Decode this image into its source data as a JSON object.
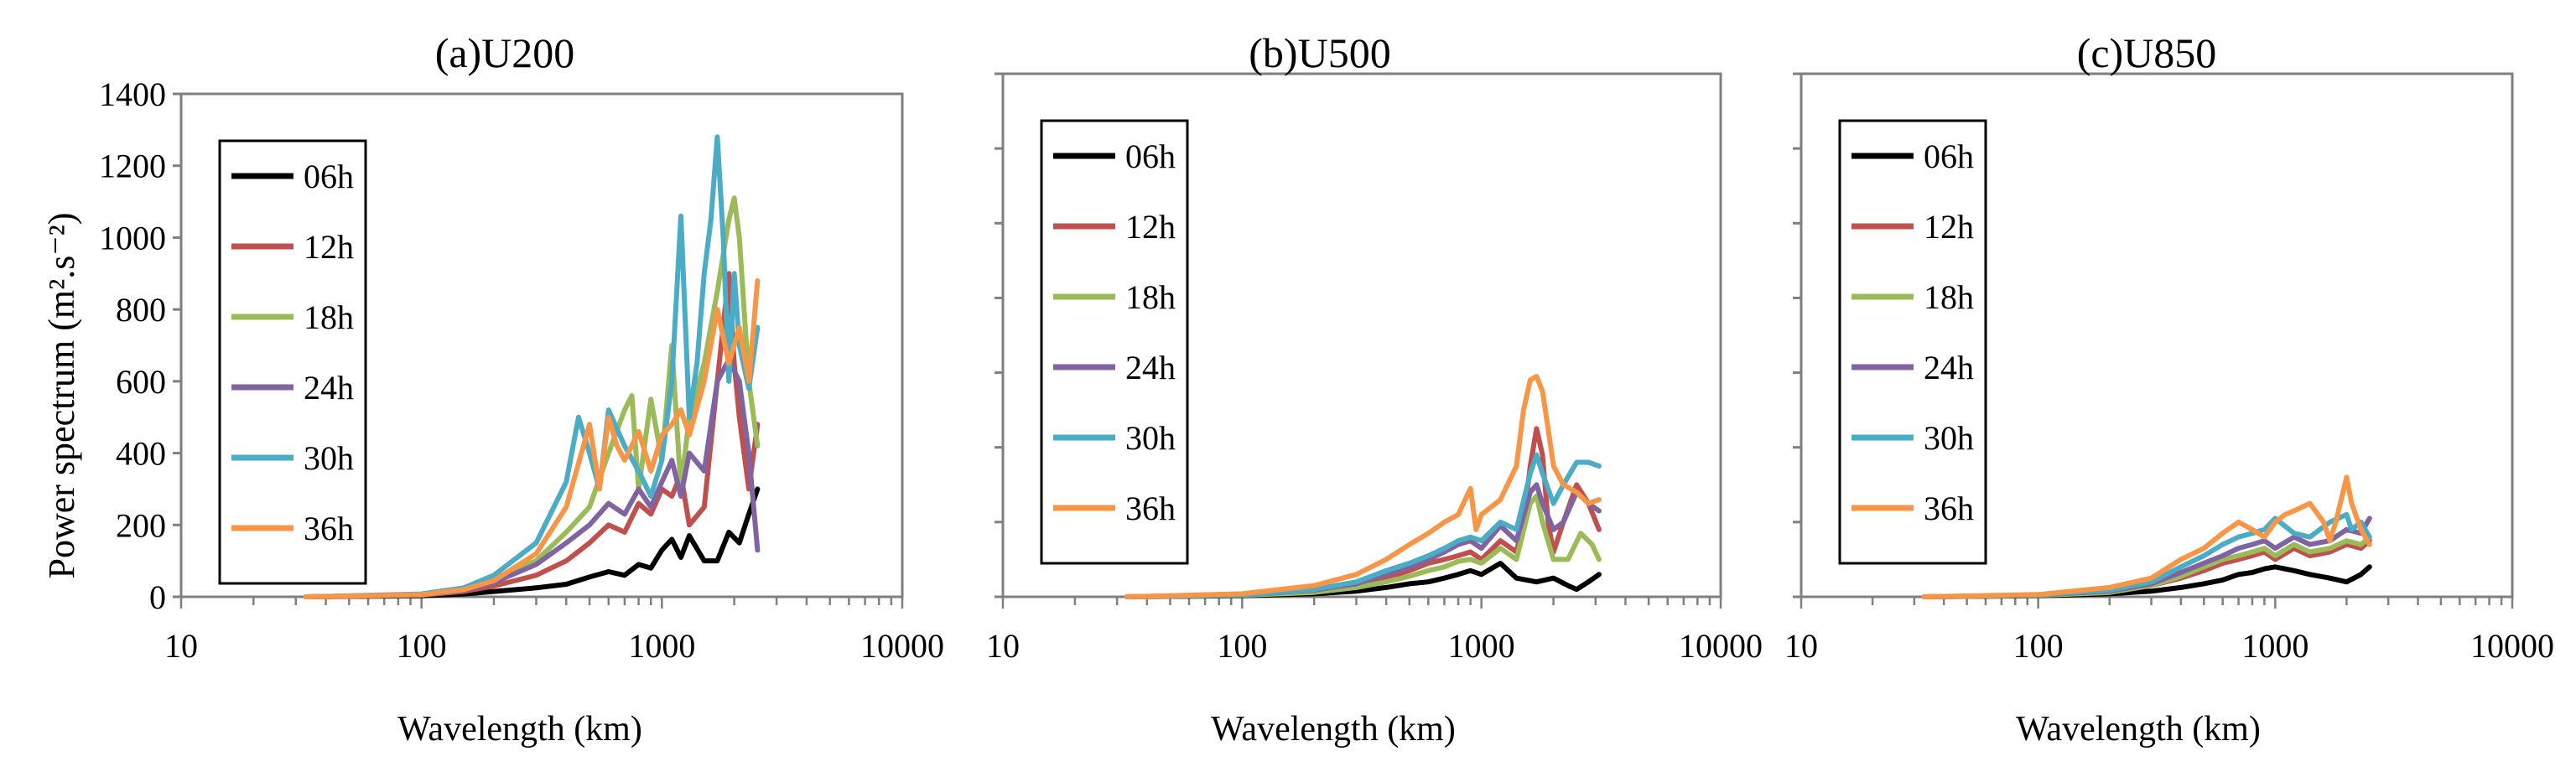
{
  "chart_data": [
    {
      "type": "line",
      "title": "(a)U200",
      "xlabel": "Wavelength (km)",
      "ylabel": "Power spectrum (m².s⁻²)",
      "xscale": "log",
      "xlim": [
        10,
        10000
      ],
      "ylim": [
        0,
        1400
      ],
      "yticks": [
        0,
        200,
        400,
        600,
        800,
        1000,
        1200,
        1400
      ],
      "yticks_labels": [
        "0",
        "200",
        "400",
        "600",
        "800",
        "1000",
        "1200",
        "1400"
      ],
      "xticks": [
        10,
        100,
        1000,
        10000
      ],
      "xticks_labels": [
        "10",
        "100",
        "1000",
        "10000"
      ],
      "legend_position": "top-left",
      "series": [
        {
          "name": "06h",
          "color": "#000000",
          "x": [
            33,
            100,
            150,
            200,
            300,
            400,
            500,
            600,
            700,
            800,
            900,
            1000,
            1100,
            1200,
            1300,
            1500,
            1700,
            1900,
            2100,
            2300,
            2500
          ],
          "y": [
            0,
            3,
            8,
            15,
            25,
            35,
            55,
            70,
            60,
            90,
            80,
            130,
            160,
            110,
            170,
            100,
            100,
            180,
            150,
            230,
            300
          ]
        },
        {
          "name": "12h",
          "color": "#c0504d",
          "x": [
            33,
            100,
            150,
            200,
            300,
            400,
            500,
            600,
            700,
            800,
            900,
            1000,
            1100,
            1200,
            1300,
            1500,
            1700,
            1900,
            2000,
            2100,
            2300,
            2500
          ],
          "y": [
            0,
            5,
            15,
            30,
            60,
            100,
            150,
            200,
            180,
            260,
            230,
            300,
            280,
            340,
            200,
            250,
            600,
            900,
            650,
            500,
            300,
            480
          ]
        },
        {
          "name": "18h",
          "color": "#9bbb59",
          "x": [
            33,
            100,
            150,
            200,
            300,
            400,
            500,
            600,
            700,
            750,
            800,
            900,
            1000,
            1100,
            1200,
            1300,
            1500,
            1700,
            1900,
            2000,
            2100,
            2300,
            2500
          ],
          "y": [
            0,
            5,
            20,
            50,
            100,
            180,
            250,
            400,
            520,
            560,
            300,
            550,
            380,
            700,
            300,
            500,
            650,
            850,
            1050,
            1110,
            1000,
            600,
            420
          ]
        },
        {
          "name": "24h",
          "color": "#8064a2",
          "x": [
            33,
            100,
            150,
            200,
            300,
            400,
            500,
            600,
            700,
            800,
            900,
            1000,
            1100,
            1200,
            1300,
            1500,
            1700,
            1900,
            2100,
            2300,
            2500
          ],
          "y": [
            0,
            5,
            18,
            40,
            90,
            150,
            200,
            260,
            230,
            300,
            250,
            320,
            380,
            280,
            400,
            350,
            600,
            660,
            600,
            400,
            130
          ]
        },
        {
          "name": "30h",
          "color": "#4bacc6",
          "x": [
            33,
            100,
            150,
            200,
            300,
            400,
            450,
            500,
            550,
            600,
            700,
            800,
            900,
            1000,
            1100,
            1200,
            1300,
            1400,
            1500,
            1600,
            1700,
            1800,
            1900,
            2000,
            2100,
            2300,
            2500
          ],
          "y": [
            0,
            8,
            25,
            60,
            150,
            320,
            500,
            400,
            300,
            520,
            420,
            350,
            280,
            380,
            600,
            1060,
            500,
            650,
            900,
            1050,
            1280,
            1000,
            600,
            900,
            700,
            580,
            750
          ]
        },
        {
          "name": "36h",
          "color": "#f79646",
          "x": [
            33,
            100,
            150,
            200,
            300,
            400,
            500,
            550,
            600,
            650,
            700,
            800,
            900,
            1000,
            1100,
            1200,
            1300,
            1500,
            1700,
            1900,
            2000,
            2100,
            2300,
            2500
          ],
          "y": [
            0,
            6,
            20,
            45,
            120,
            250,
            480,
            300,
            500,
            420,
            380,
            460,
            350,
            450,
            480,
            520,
            450,
            600,
            800,
            650,
            700,
            750,
            600,
            880
          ]
        }
      ]
    },
    {
      "type": "line",
      "title": "(b)U500",
      "xlabel": "Wavelength (km)",
      "ylabel": "",
      "xscale": "log",
      "xlim": [
        10,
        10000
      ],
      "ylim": [
        0,
        1400
      ],
      "xticks": [
        10,
        100,
        1000,
        10000
      ],
      "xticks_labels": [
        "10",
        "100",
        "1000",
        "10000"
      ],
      "legend_position": "top-left",
      "series": [
        {
          "name": "06h",
          "color": "#000000",
          "x": [
            33,
            100,
            200,
            300,
            400,
            500,
            600,
            700,
            800,
            900,
            1000,
            1200,
            1400,
            1700,
            2000,
            2300,
            2500,
            2800,
            3100
          ],
          "y": [
            0,
            3,
            8,
            15,
            25,
            35,
            40,
            50,
            60,
            70,
            60,
            90,
            50,
            40,
            50,
            30,
            20,
            40,
            60
          ]
        },
        {
          "name": "12h",
          "color": "#c0504d",
          "x": [
            33,
            100,
            200,
            300,
            400,
            500,
            600,
            700,
            800,
            900,
            1000,
            1200,
            1400,
            1500,
            1600,
            1700,
            1800,
            1900,
            2000,
            2200,
            2500,
            2800,
            3100
          ],
          "y": [
            0,
            5,
            15,
            30,
            50,
            70,
            90,
            100,
            110,
            120,
            100,
            150,
            120,
            200,
            350,
            450,
            380,
            200,
            120,
            200,
            300,
            250,
            180
          ]
        },
        {
          "name": "18h",
          "color": "#9bbb59",
          "x": [
            33,
            100,
            200,
            300,
            400,
            500,
            600,
            700,
            800,
            900,
            1000,
            1200,
            1400,
            1600,
            1700,
            1800,
            2000,
            2300,
            2600,
            2900,
            3100
          ],
          "y": [
            0,
            4,
            12,
            25,
            40,
            55,
            70,
            80,
            95,
            100,
            90,
            130,
            100,
            250,
            270,
            200,
            100,
            100,
            170,
            140,
            100
          ]
        },
        {
          "name": "24h",
          "color": "#8064a2",
          "x": [
            33,
            100,
            200,
            300,
            400,
            500,
            600,
            700,
            800,
            900,
            1000,
            1200,
            1400,
            1600,
            1700,
            1800,
            2000,
            2200,
            2500,
            2800,
            3100
          ],
          "y": [
            0,
            5,
            18,
            35,
            60,
            80,
            100,
            120,
            140,
            150,
            130,
            190,
            150,
            280,
            300,
            250,
            180,
            200,
            280,
            250,
            230
          ]
        },
        {
          "name": "30h",
          "color": "#4bacc6",
          "x": [
            33,
            100,
            200,
            300,
            400,
            500,
            600,
            700,
            800,
            900,
            1000,
            1200,
            1400,
            1600,
            1700,
            1800,
            2000,
            2200,
            2500,
            2800,
            3100
          ],
          "y": [
            0,
            5,
            20,
            40,
            70,
            90,
            110,
            130,
            150,
            160,
            150,
            200,
            180,
            330,
            380,
            330,
            250,
            300,
            360,
            360,
            350
          ]
        },
        {
          "name": "36h",
          "color": "#f79646",
          "x": [
            33,
            100,
            200,
            300,
            400,
            500,
            600,
            700,
            800,
            900,
            950,
            1000,
            1200,
            1400,
            1500,
            1600,
            1700,
            1800,
            1900,
            2000,
            2200,
            2500,
            2800,
            3100
          ],
          "y": [
            0,
            8,
            30,
            60,
            100,
            140,
            170,
            200,
            220,
            290,
            180,
            220,
            260,
            350,
            500,
            580,
            590,
            550,
            450,
            350,
            300,
            280,
            250,
            260
          ]
        }
      ]
    },
    {
      "type": "line",
      "title": "(c)U850",
      "xlabel": "Wavelength (km)",
      "ylabel": "",
      "xscale": "log",
      "xlim": [
        10,
        10000
      ],
      "ylim": [
        0,
        1400
      ],
      "xticks": [
        10,
        100,
        1000,
        10000
      ],
      "xticks_labels": [
        "10",
        "100",
        "1000",
        "10000"
      ],
      "legend_position": "top-left",
      "series": [
        {
          "name": "06h",
          "color": "#000000",
          "x": [
            33,
            100,
            200,
            300,
            400,
            500,
            600,
            700,
            800,
            900,
            1000,
            1200,
            1400,
            1700,
            2000,
            2300,
            2500
          ],
          "y": [
            0,
            3,
            8,
            15,
            25,
            35,
            45,
            60,
            65,
            75,
            80,
            70,
            60,
            50,
            40,
            60,
            80
          ]
        },
        {
          "name": "12h",
          "color": "#c0504d",
          "x": [
            33,
            100,
            200,
            300,
            400,
            500,
            600,
            700,
            800,
            900,
            1000,
            1200,
            1400,
            1700,
            2000,
            2300,
            2500
          ],
          "y": [
            0,
            4,
            12,
            30,
            50,
            70,
            90,
            100,
            110,
            120,
            100,
            130,
            110,
            120,
            140,
            130,
            150
          ]
        },
        {
          "name": "18h",
          "color": "#9bbb59",
          "x": [
            33,
            100,
            200,
            300,
            400,
            500,
            600,
            700,
            800,
            900,
            1000,
            1200,
            1400,
            1700,
            2000,
            2300,
            2500
          ],
          "y": [
            0,
            4,
            12,
            30,
            55,
            80,
            100,
            110,
            120,
            130,
            110,
            140,
            120,
            130,
            150,
            140,
            160
          ]
        },
        {
          "name": "24h",
          "color": "#8064a2",
          "x": [
            33,
            100,
            200,
            300,
            400,
            500,
            600,
            700,
            800,
            900,
            1000,
            1200,
            1400,
            1700,
            2000,
            2300,
            2500
          ],
          "y": [
            0,
            5,
            15,
            35,
            65,
            90,
            110,
            130,
            140,
            150,
            130,
            160,
            140,
            150,
            180,
            170,
            210
          ]
        },
        {
          "name": "30h",
          "color": "#4bacc6",
          "x": [
            33,
            100,
            200,
            300,
            400,
            500,
            600,
            700,
            800,
            900,
            1000,
            1200,
            1400,
            1700,
            2000,
            2100,
            2300,
            2500
          ],
          "y": [
            0,
            5,
            18,
            40,
            80,
            110,
            140,
            160,
            170,
            180,
            210,
            170,
            160,
            200,
            220,
            180,
            200,
            160
          ]
        },
        {
          "name": "36h",
          "color": "#f79646",
          "x": [
            33,
            100,
            200,
            300,
            400,
            500,
            600,
            700,
            800,
            900,
            1000,
            1100,
            1200,
            1400,
            1600,
            1700,
            1800,
            2000,
            2100,
            2300,
            2500
          ],
          "y": [
            0,
            6,
            25,
            50,
            100,
            130,
            170,
            200,
            180,
            160,
            200,
            220,
            230,
            250,
            200,
            150,
            200,
            320,
            250,
            180,
            140
          ]
        }
      ]
    }
  ]
}
